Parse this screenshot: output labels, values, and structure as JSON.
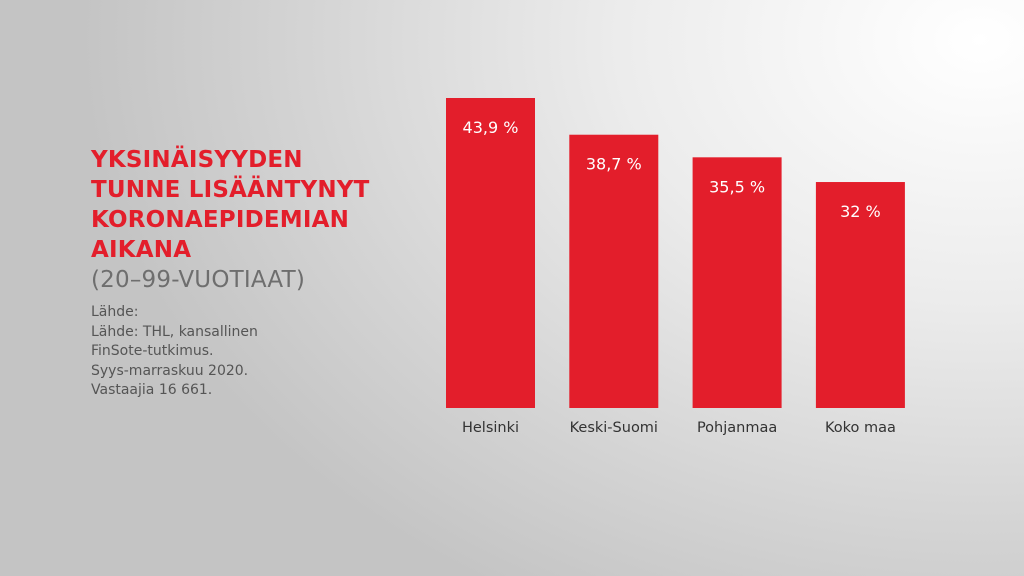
{
  "title": {
    "lines": [
      "YKSINÄISYYDEN",
      "TUNNE LISÄÄNTYNYT",
      "KORONAEPIDEMIAN",
      "AIKANA"
    ],
    "subtitle": "(20–99-VUOTIAAT)"
  },
  "source": {
    "lines": [
      "Lähde:",
      "Lähde: THL, kansallinen",
      "FinSote-tutkimus.",
      "Syys-marraskuu 2020.",
      "Vastaajia 16 661."
    ]
  },
  "colors": {
    "bar": "#e31e2b",
    "title": "#e31e2b"
  },
  "chart_data": {
    "type": "bar",
    "categories": [
      "Helsinki",
      "Keski-Suomi",
      "Pohjanmaa",
      "Koko maa"
    ],
    "values": [
      43.9,
      38.7,
      35.5,
      32
    ],
    "data_labels": [
      "43,9 %",
      "38,7 %",
      "35,5 %",
      "32 %"
    ],
    "ylim": [
      0,
      43.9
    ],
    "grid": false,
    "unit": "%"
  }
}
